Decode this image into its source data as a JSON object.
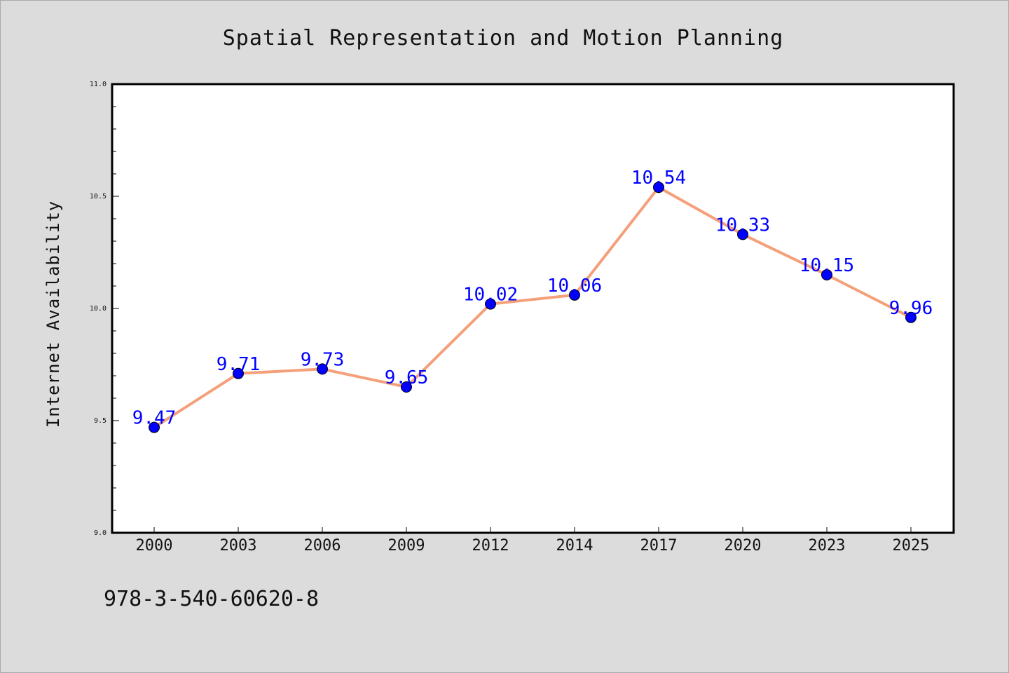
{
  "chart_data": {
    "type": "line",
    "title": "Spatial Representation and Motion Planning",
    "xlabel": "",
    "ylabel": "Internet Availability",
    "categories": [
      "2000",
      "2003",
      "2006",
      "2009",
      "2012",
      "2014",
      "2017",
      "2020",
      "2023",
      "2025"
    ],
    "series": [
      {
        "values": [
          9.47,
          9.71,
          9.73,
          9.65,
          10.02,
          10.06,
          10.54,
          10.33,
          10.15,
          9.96
        ],
        "data_labels": [
          "9.47",
          "9.71",
          "9.73",
          "9.65",
          "10.02",
          "10.06",
          "10.54",
          "10.33",
          "10.15",
          "9.96"
        ],
        "line_color": "#f4a07a",
        "marker_color": "#0000ff"
      }
    ],
    "ylim": [
      9.0,
      11.0
    ],
    "yticks": [
      "9.0",
      "9.5",
      "10.0",
      "10.5",
      "11.0"
    ],
    "grid": false,
    "legend": "none"
  },
  "footer_text": "978-3-540-60620-8"
}
